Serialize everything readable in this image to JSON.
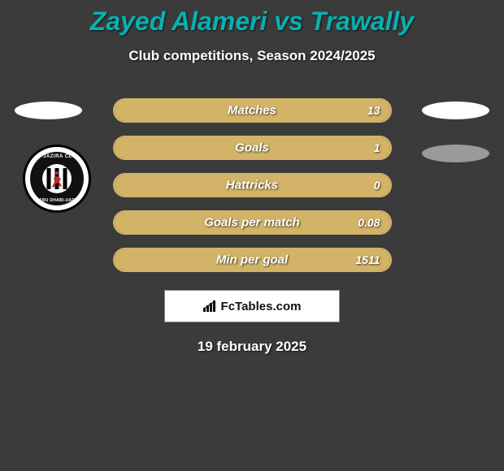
{
  "title": "Zayed Alameri vs Trawally",
  "subtitle": "Club competitions, Season 2024/2025",
  "date": "19 february 2025",
  "brand_text": "FcTables.com",
  "colors": {
    "background": "#3b3b3b",
    "title_color": "#07b1b1",
    "bar_border": "#d2b367",
    "bar_fill": "#d2b367",
    "ellipse_gray": "#9a9a9a"
  },
  "badges": {
    "left": {
      "top_text": "AL-JAZIRA CLUB",
      "bottom_text": "ABU DHABI-UAE"
    }
  },
  "stats": [
    {
      "label": "Matches",
      "value": "13",
      "fill_pct": 100
    },
    {
      "label": "Goals",
      "value": "1",
      "fill_pct": 100
    },
    {
      "label": "Hattricks",
      "value": "0",
      "fill_pct": 100
    },
    {
      "label": "Goals per match",
      "value": "0.08",
      "fill_pct": 100
    },
    {
      "label": "Min per goal",
      "value": "1511",
      "fill_pct": 100
    }
  ]
}
